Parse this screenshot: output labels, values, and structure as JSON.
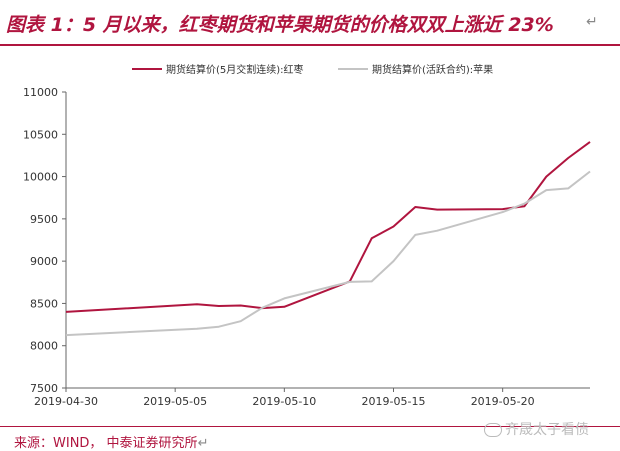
{
  "header": {
    "title": "图表 1：5 月以来，红枣期货和苹果期货的价格双双上涨近 23%",
    "end_mark": "↵"
  },
  "footer": {
    "source": "来源：WIND， 中泰证券研究所",
    "end_mark": "↵"
  },
  "watermark": {
    "text": "齐晟太子看债"
  },
  "colors": {
    "accent": "#b0153f",
    "series_jujube": "#b0153f",
    "series_apple": "#c4c4c4",
    "axis": "#666666"
  },
  "chart_data": {
    "type": "line",
    "title": "",
    "xlabel": "",
    "ylabel": "",
    "ylim": [
      7500,
      11000
    ],
    "yticks": [
      7500,
      8000,
      8500,
      9000,
      9500,
      10000,
      10500,
      11000
    ],
    "xlim": [
      "2019-04-30",
      "2019-05-24"
    ],
    "xticks": [
      "2019-04-30",
      "2019-05-05",
      "2019-05-10",
      "2019-05-15",
      "2019-05-20"
    ],
    "legend_position": "top",
    "series": [
      {
        "name": "期货结算价(5月交割连续):红枣",
        "color": "#b0153f",
        "points": [
          [
            "2019-04-30",
            8400
          ],
          [
            "2019-05-06",
            8490
          ],
          [
            "2019-05-07",
            8470
          ],
          [
            "2019-05-08",
            8475
          ],
          [
            "2019-05-09",
            8445
          ],
          [
            "2019-05-10",
            8460
          ],
          [
            "2019-05-13",
            8760
          ],
          [
            "2019-05-14",
            9270
          ],
          [
            "2019-05-15",
            9410
          ],
          [
            "2019-05-16",
            9640
          ],
          [
            "2019-05-17",
            9610
          ],
          [
            "2019-05-20",
            9615
          ],
          [
            "2019-05-21",
            9650
          ],
          [
            "2019-05-22",
            10000
          ],
          [
            "2019-05-23",
            10220
          ],
          [
            "2019-05-24",
            10410
          ]
        ]
      },
      {
        "name": "期货结算价(活跃合约):苹果",
        "color": "#c4c4c4",
        "points": [
          [
            "2019-04-30",
            8125
          ],
          [
            "2019-05-06",
            8200
          ],
          [
            "2019-05-07",
            8225
          ],
          [
            "2019-05-08",
            8290
          ],
          [
            "2019-05-09",
            8450
          ],
          [
            "2019-05-10",
            8560
          ],
          [
            "2019-05-13",
            8755
          ],
          [
            "2019-05-14",
            8760
          ],
          [
            "2019-05-15",
            9000
          ],
          [
            "2019-05-16",
            9310
          ],
          [
            "2019-05-17",
            9360
          ],
          [
            "2019-05-20",
            9580
          ],
          [
            "2019-05-21",
            9680
          ],
          [
            "2019-05-22",
            9840
          ],
          [
            "2019-05-23",
            9860
          ],
          [
            "2019-05-24",
            10060
          ]
        ]
      }
    ]
  }
}
